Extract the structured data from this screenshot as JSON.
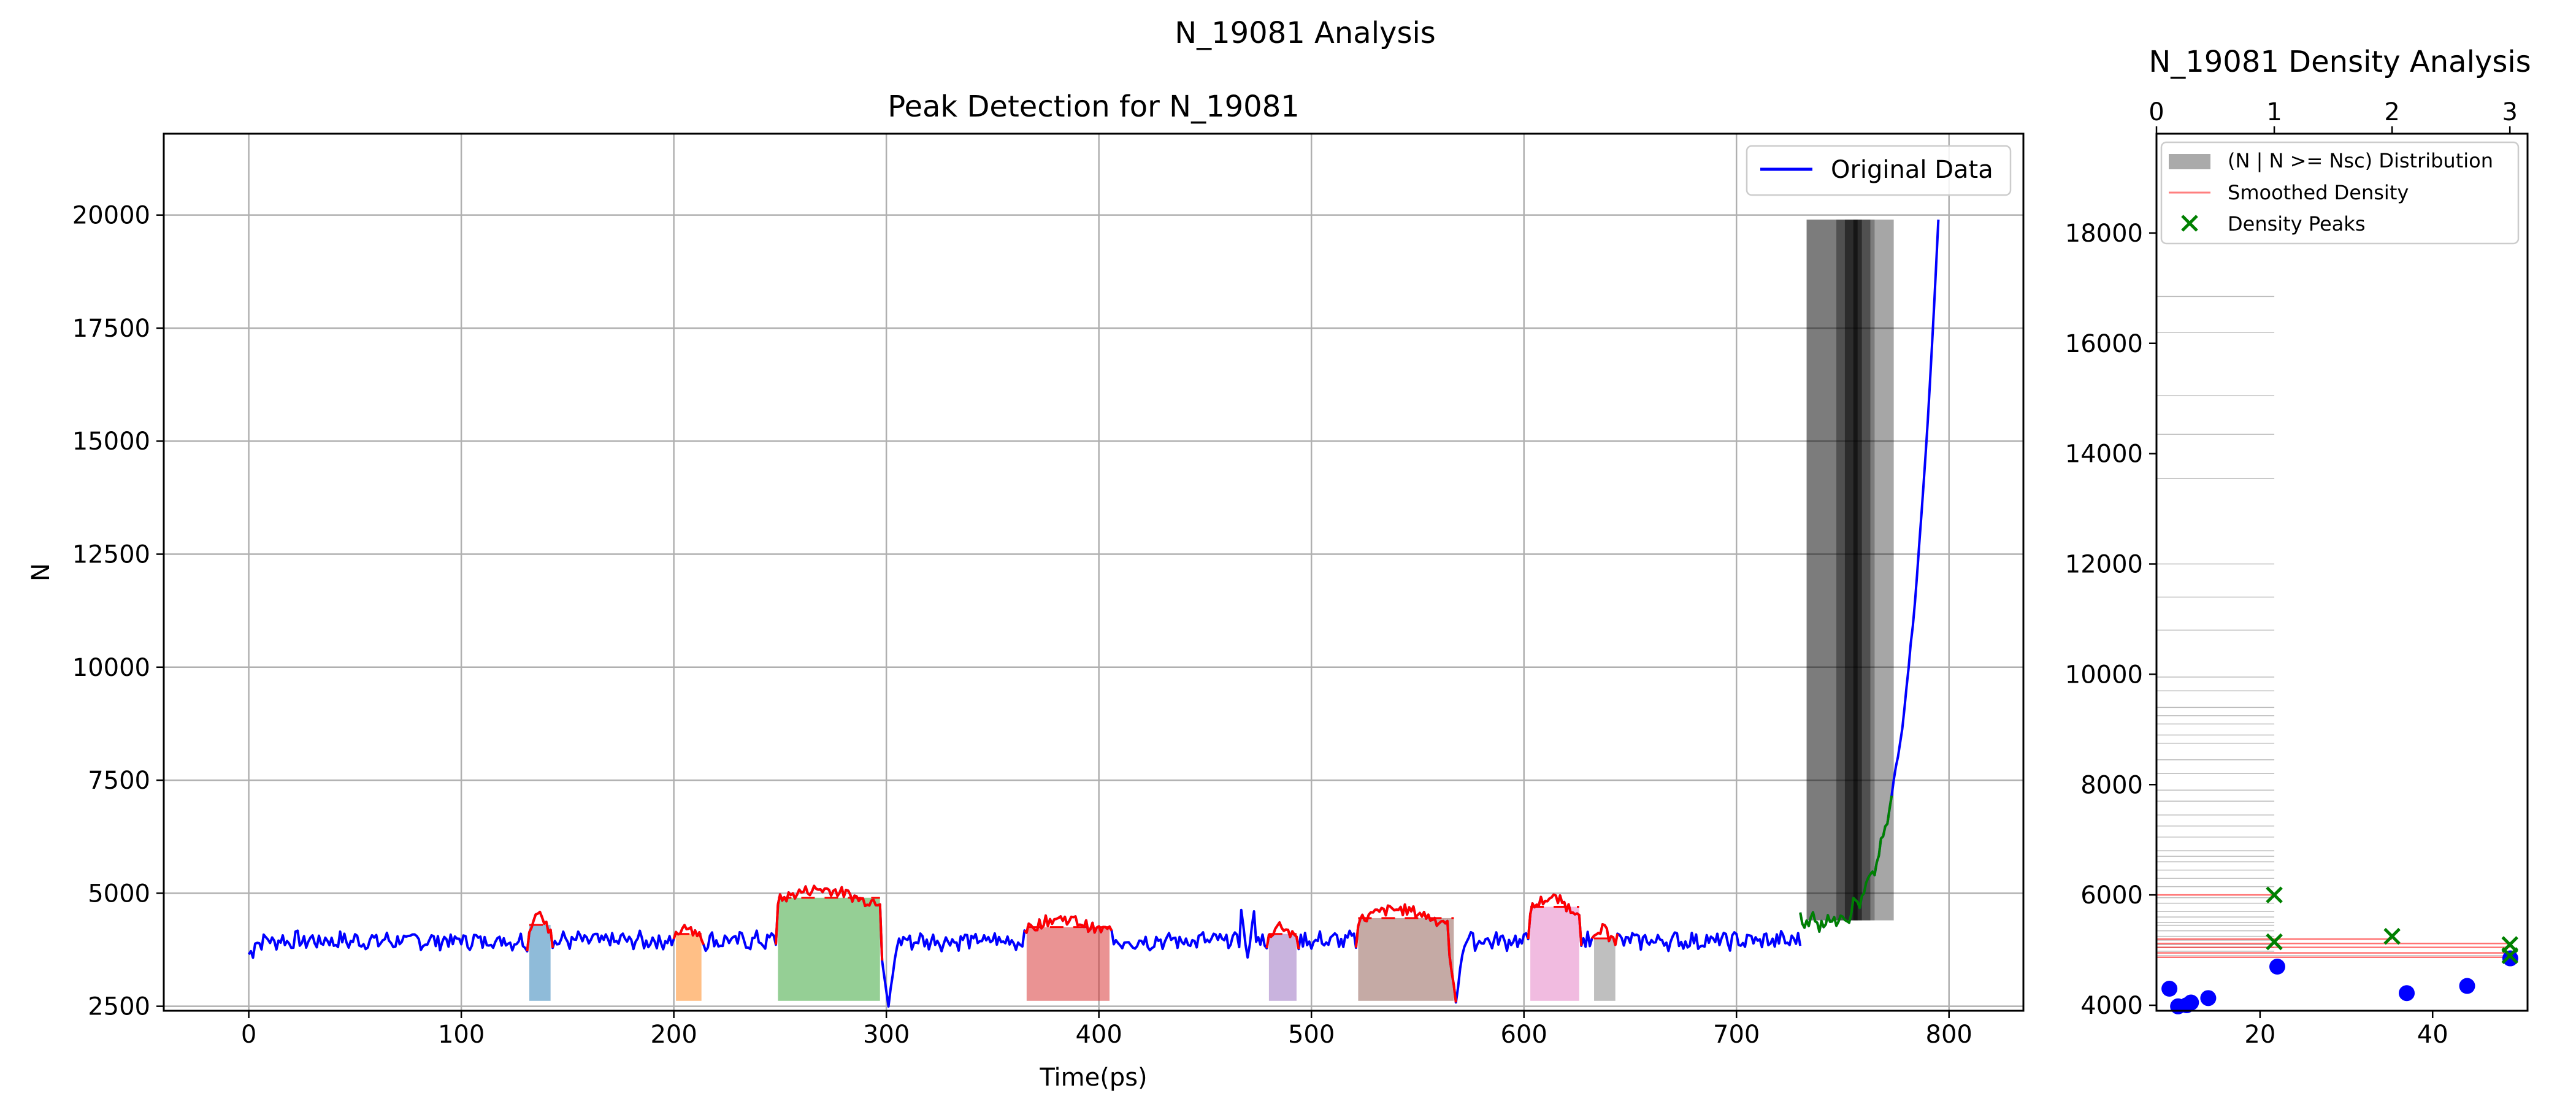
{
  "figure": {
    "suptitle": "N_19081 Analysis"
  },
  "chart_data": [
    {
      "type": "line",
      "title": "Peak Detection for N_19081",
      "xlabel": "Time(ps)",
      "ylabel": "N",
      "xlim": [
        -40,
        835
      ],
      "ylim": [
        2400,
        21800
      ],
      "xticks": [
        0,
        100,
        200,
        300,
        400,
        500,
        600,
        700,
        800
      ],
      "yticks": [
        2500,
        5000,
        7500,
        10000,
        12500,
        15000,
        17500,
        20000
      ],
      "grid": true,
      "legend": {
        "placement": "top-right",
        "entries": [
          "Original Data"
        ]
      },
      "colors": {
        "original": "#0000ff",
        "peak": "#ff0000",
        "rise": "#008000"
      },
      "baseline": 3950,
      "peak_regions": [
        {
          "x0": 132,
          "x1": 142,
          "level": 4300,
          "color": "#1f77b4"
        },
        {
          "x0": 201,
          "x1": 213,
          "level": 4100,
          "color": "#ff7f0e"
        },
        {
          "x0": 249,
          "x1": 297,
          "level": 4900,
          "color": "#2ca02c"
        },
        {
          "x0": 366,
          "x1": 405,
          "level": 4250,
          "color": "#d62728"
        },
        {
          "x0": 480,
          "x1": 493,
          "level": 4100,
          "color": "#9467bd"
        },
        {
          "x0": 522,
          "x1": 567,
          "level": 4450,
          "color": "#8c564b"
        },
        {
          "x0": 603,
          "x1": 626,
          "level": 4700,
          "color": "#e377c2"
        },
        {
          "x0": 633,
          "x1": 643,
          "level": 4000,
          "color": "#7f7f7f"
        }
      ],
      "dips": [
        {
          "x": 301,
          "y": 2450
        },
        {
          "x": 568,
          "y": 2550
        },
        {
          "x": 470,
          "y": 3500
        }
      ],
      "rise": {
        "x_start": 730,
        "x_end": 795,
        "y_start": 4400,
        "y_end": 19900
      },
      "grey_bars": [
        {
          "x0": 733,
          "x1": 774,
          "y0": 4400,
          "y1": 19900,
          "shade": 0.35
        },
        {
          "x0": 733,
          "x1": 765,
          "y0": 4400,
          "y1": 19900,
          "shade": 0.25
        },
        {
          "x0": 747,
          "x1": 763,
          "y0": 4400,
          "y1": 19900,
          "shade": 0.35
        },
        {
          "x0": 751,
          "x1": 759,
          "y0": 4400,
          "y1": 19900,
          "shade": 0.45
        },
        {
          "x0": 755,
          "x1": 757,
          "y0": 4400,
          "y1": 19900,
          "shade": 0.5
        }
      ]
    },
    {
      "type": "bar",
      "title": "N_19081 Density Analysis",
      "orientation": "horizontal",
      "top_xticks": [
        0,
        1,
        2,
        3
      ],
      "bottom_xticks": [
        20,
        40
      ],
      "yticks": [
        4000,
        6000,
        8000,
        10000,
        12000,
        14000,
        16000,
        18000
      ],
      "top_xlim": [
        0,
        3.15
      ],
      "bottom_xlim": [
        8,
        51
      ],
      "ylim": [
        3900,
        19800
      ],
      "grid": false,
      "legend": {
        "placement": "top-left",
        "entries": [
          "(N | N >= Nsc) Distribution",
          "Smoothed Density",
          "Density Peaks"
        ]
      },
      "distribution_lines": [
        {
          "y": 16850,
          "w": 1.0
        },
        {
          "y": 16200,
          "w": 1.0
        },
        {
          "y": 15050,
          "w": 1.0
        },
        {
          "y": 14350,
          "w": 1.0
        },
        {
          "y": 13550,
          "w": 1.0
        },
        {
          "y": 12000,
          "w": 1.0
        },
        {
          "y": 11400,
          "w": 1.0
        },
        {
          "y": 10800,
          "w": 1.0
        },
        {
          "y": 9950,
          "w": 1.0
        },
        {
          "y": 9700,
          "w": 1.0
        },
        {
          "y": 9400,
          "w": 1.0
        },
        {
          "y": 9250,
          "w": 1.0
        },
        {
          "y": 9100,
          "w": 1.0
        },
        {
          "y": 8900,
          "w": 1.0
        },
        {
          "y": 8750,
          "w": 1.0
        },
        {
          "y": 8450,
          "w": 1.0
        },
        {
          "y": 8200,
          "w": 1.0
        },
        {
          "y": 7900,
          "w": 1.0
        },
        {
          "y": 7700,
          "w": 1.0
        },
        {
          "y": 7450,
          "w": 1.0
        },
        {
          "y": 7250,
          "w": 1.0
        },
        {
          "y": 7050,
          "w": 1.0
        },
        {
          "y": 6800,
          "w": 1.0
        },
        {
          "y": 6700,
          "w": 1.0
        },
        {
          "y": 6600,
          "w": 1.0
        },
        {
          "y": 6450,
          "w": 1.0
        },
        {
          "y": 6300,
          "w": 1.0
        },
        {
          "y": 6150,
          "w": 1.0
        },
        {
          "y": 5950,
          "w": 1.0
        },
        {
          "y": 5850,
          "w": 1.0
        },
        {
          "y": 5700,
          "w": 1.0
        },
        {
          "y": 5600,
          "w": 1.0
        },
        {
          "y": 5500,
          "w": 1.0
        },
        {
          "y": 5450,
          "w": 1.0
        },
        {
          "y": 5350,
          "w": 1.0
        },
        {
          "y": 5250,
          "w": 1.0
        },
        {
          "y": 5180,
          "w": 1.0
        },
        {
          "y": 5100,
          "w": 1.0
        },
        {
          "y": 5050,
          "w": 1.0
        },
        {
          "y": 4980,
          "w": 1.0
        },
        {
          "y": 4900,
          "w": 3.0
        }
      ],
      "smoothed_density": [
        {
          "y": 6000,
          "x0": 0,
          "x1": 1.0
        },
        {
          "y": 5200,
          "x0": 0,
          "x1": 2.0
        },
        {
          "y": 5120,
          "x0": 0,
          "x1": 3.0
        },
        {
          "y": 5050,
          "x0": 0,
          "x1": 3.0
        },
        {
          "y": 4950,
          "x0": 0,
          "x1": 3.0
        },
        {
          "y": 4870,
          "x0": 0,
          "x1": 3.0
        }
      ],
      "density_peaks": [
        {
          "x": 1.0,
          "y": 6000
        },
        {
          "x": 1.0,
          "y": 5150
        },
        {
          "x": 2.0,
          "y": 5250
        },
        {
          "x": 3.0,
          "y": 5100
        },
        {
          "x": 3.0,
          "y": 4900
        }
      ],
      "points": [
        {
          "x": 9.5,
          "y": 4300
        },
        {
          "x": 10.5,
          "y": 3980
        },
        {
          "x": 11.5,
          "y": 4000
        },
        {
          "x": 12,
          "y": 4050
        },
        {
          "x": 14,
          "y": 4130
        },
        {
          "x": 22,
          "y": 4700
        },
        {
          "x": 37,
          "y": 4220
        },
        {
          "x": 44,
          "y": 4350
        },
        {
          "x": 49,
          "y": 4850
        }
      ]
    }
  ]
}
